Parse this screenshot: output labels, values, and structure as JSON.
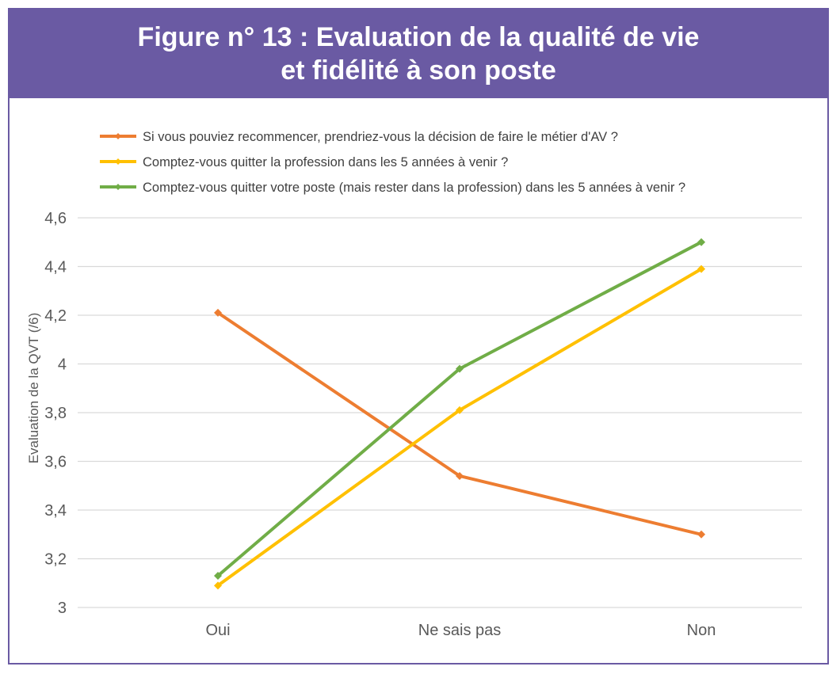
{
  "figure": {
    "title_line1": "Figure n° 13 : Evaluation de la qualité de vie",
    "title_line2": "et fidélité à son poste",
    "banner_color": "#6a5aa3"
  },
  "chart_data": {
    "type": "line",
    "categories": [
      "Oui",
      "Ne sais pas",
      "Non"
    ],
    "series": [
      {
        "name": "Si vous pouviez recommencer, prendriez-vous la décision de faire le métier d'AV ?",
        "color": "#ed7d31",
        "values": [
          4.21,
          3.54,
          3.3
        ]
      },
      {
        "name": "Comptez-vous quitter la profession dans les 5 années à venir ?",
        "color": "#ffc000",
        "values": [
          3.09,
          3.81,
          4.39
        ]
      },
      {
        "name": "Comptez-vous quitter votre poste (mais rester dans la profession) dans les 5 années à venir ?",
        "color": "#70ad47",
        "values": [
          3.13,
          3.98,
          4.5
        ]
      }
    ],
    "ylabel": "Evaluation de la QVT (/6)",
    "xlabel": "",
    "ylim": [
      3,
      4.6
    ],
    "yticks": [
      "3",
      "3,2",
      "3,4",
      "3,6",
      "3,8",
      "4",
      "4,2",
      "4,4",
      "4,6"
    ],
    "grid": true,
    "legend_position": "top"
  }
}
